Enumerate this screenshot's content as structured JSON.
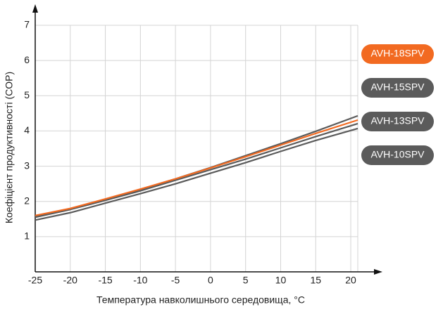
{
  "chart_data": {
    "type": "line",
    "y_label": "Коефіцієнт продуктивності (COP)",
    "x_label": "Температура навколишнього середовища, °C",
    "x": [
      -25,
      -20,
      -15,
      -10,
      -5,
      0,
      5,
      10,
      15,
      21
    ],
    "series": [
      {
        "name": "AVH-18SPV",
        "color": "#f26a21",
        "values": [
          1.6,
          1.8,
          2.07,
          2.35,
          2.64,
          2.95,
          3.27,
          3.6,
          3.93,
          4.31
        ]
      },
      {
        "name": "AVH-15SPV",
        "color": "#5b5b5b",
        "values": [
          1.57,
          1.78,
          2.05,
          2.34,
          2.64,
          2.96,
          3.3,
          3.64,
          3.99,
          4.43
        ]
      },
      {
        "name": "AVH-13SPV",
        "color": "#5b5b5b",
        "values": [
          1.55,
          1.77,
          2.03,
          2.3,
          2.6,
          2.9,
          3.2,
          3.52,
          3.84,
          4.21
        ]
      },
      {
        "name": "AVH-10SPV",
        "color": "#5b5b5b",
        "values": [
          1.47,
          1.68,
          1.95,
          2.22,
          2.5,
          2.8,
          3.1,
          3.42,
          3.73,
          4.07
        ]
      }
    ],
    "xlim": [
      -25,
      21
    ],
    "ylim": [
      0,
      7
    ],
    "xticks": [
      -25,
      -20,
      -15,
      -10,
      -5,
      0,
      5,
      10,
      15,
      20
    ],
    "yticks": [
      1,
      2,
      3,
      4,
      5,
      6,
      7
    ],
    "grid": true
  }
}
